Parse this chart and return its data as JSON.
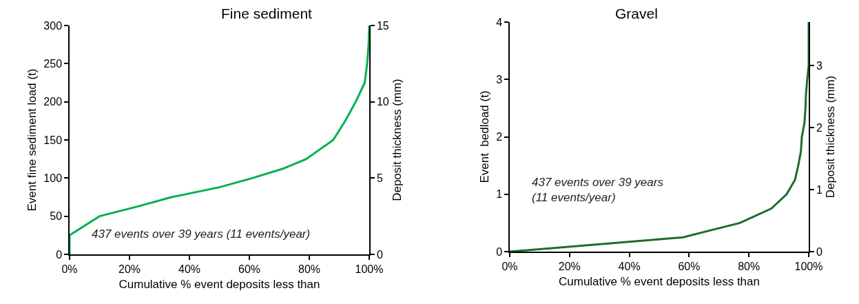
{
  "chart_data": [
    {
      "type": "line",
      "title": "Fine sediment",
      "xlabel": "Cumulative % event deposits less than",
      "ylabel": "Event fine sediment load (t)",
      "y2label": "Deposit thickness (mm)",
      "annotations": [
        "437 events over 39 years (11 events/year)"
      ],
      "series": [
        {
          "color": "#00b050",
          "x": [
            0,
            0,
            10,
            22,
            34,
            50,
            61,
            71,
            79,
            88,
            92,
            95.5,
            98.5,
            99.3,
            99.8,
            100
          ],
          "values": [
            0,
            25,
            50,
            62,
            75,
            88,
            100,
            112,
            125,
            150,
            175,
            200,
            225,
            250,
            275,
            300
          ]
        }
      ],
      "xlim": [
        0,
        100
      ],
      "xticks": [
        {
          "value": 0,
          "label": "0%"
        },
        {
          "value": 20,
          "label": "20%"
        },
        {
          "value": 40,
          "label": "40%"
        },
        {
          "value": 60,
          "label": "60%"
        },
        {
          "value": 80,
          "label": "80%"
        },
        {
          "value": 100,
          "label": "100%"
        }
      ],
      "ylim": [
        0,
        300
      ],
      "yticks": [
        0,
        50,
        100,
        150,
        200,
        250,
        300
      ],
      "y2lim": [
        0,
        15
      ],
      "y2ticks": [
        0,
        5,
        10,
        15
      ]
    },
    {
      "type": "line",
      "title": "Gravel",
      "xlabel": "Cumulative % event deposits less than",
      "ylabel": "Event  bedload (t)",
      "y2label": "Deposit thickness (mm)",
      "annotations": [
        "437 events over 39 years\n(11 events/year)"
      ],
      "series": [
        {
          "color": "#1e6b2a",
          "x": [
            0,
            58,
            77,
            87.5,
            92.6,
            95.4,
            96.5,
            97.4,
            97.7,
            98.6,
            98.9,
            99.1,
            99.5,
            100,
            100
          ],
          "values": [
            0,
            0.25,
            0.5,
            0.75,
            1.0,
            1.25,
            1.5,
            1.75,
            2.0,
            2.25,
            2.5,
            2.75,
            3.0,
            3.25,
            4.0
          ]
        }
      ],
      "xlim": [
        0,
        100
      ],
      "xticks": [
        {
          "value": 0,
          "label": "0%"
        },
        {
          "value": 20,
          "label": "20%"
        },
        {
          "value": 40,
          "label": "40%"
        },
        {
          "value": 60,
          "label": "60%"
        },
        {
          "value": 80,
          "label": "80%"
        },
        {
          "value": 100,
          "label": "100%"
        }
      ],
      "ylim": [
        0,
        4
      ],
      "yticks": [
        0,
        1,
        2,
        3,
        4
      ],
      "y2lim": [
        0,
        3.7
      ],
      "y2ticks": [
        0,
        1,
        2,
        3
      ]
    }
  ]
}
